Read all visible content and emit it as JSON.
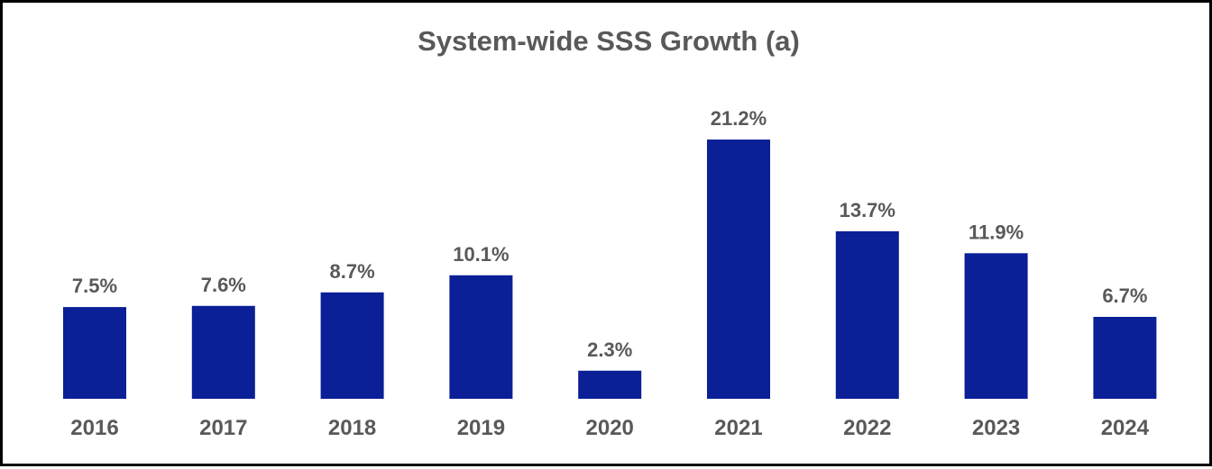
{
  "chart_data": {
    "type": "bar",
    "title": "System-wide SSS Growth (a)",
    "xlabel": "",
    "ylabel": "",
    "categories": [
      "2016",
      "2017",
      "2018",
      "2019",
      "2020",
      "2021",
      "2022",
      "2023",
      "2024"
    ],
    "values": [
      7.5,
      7.6,
      8.7,
      10.1,
      2.3,
      21.2,
      13.7,
      11.9,
      6.7
    ],
    "labels": [
      "7.5%",
      "7.6%",
      "8.7%",
      "10.1%",
      "2.3%",
      "21.2%",
      "13.7%",
      "11.9%",
      "6.7%"
    ],
    "ylim": [
      0,
      21.2
    ],
    "grid": false,
    "legend": "none",
    "bar_color": "#0b1f96",
    "text_color": "#595959"
  }
}
